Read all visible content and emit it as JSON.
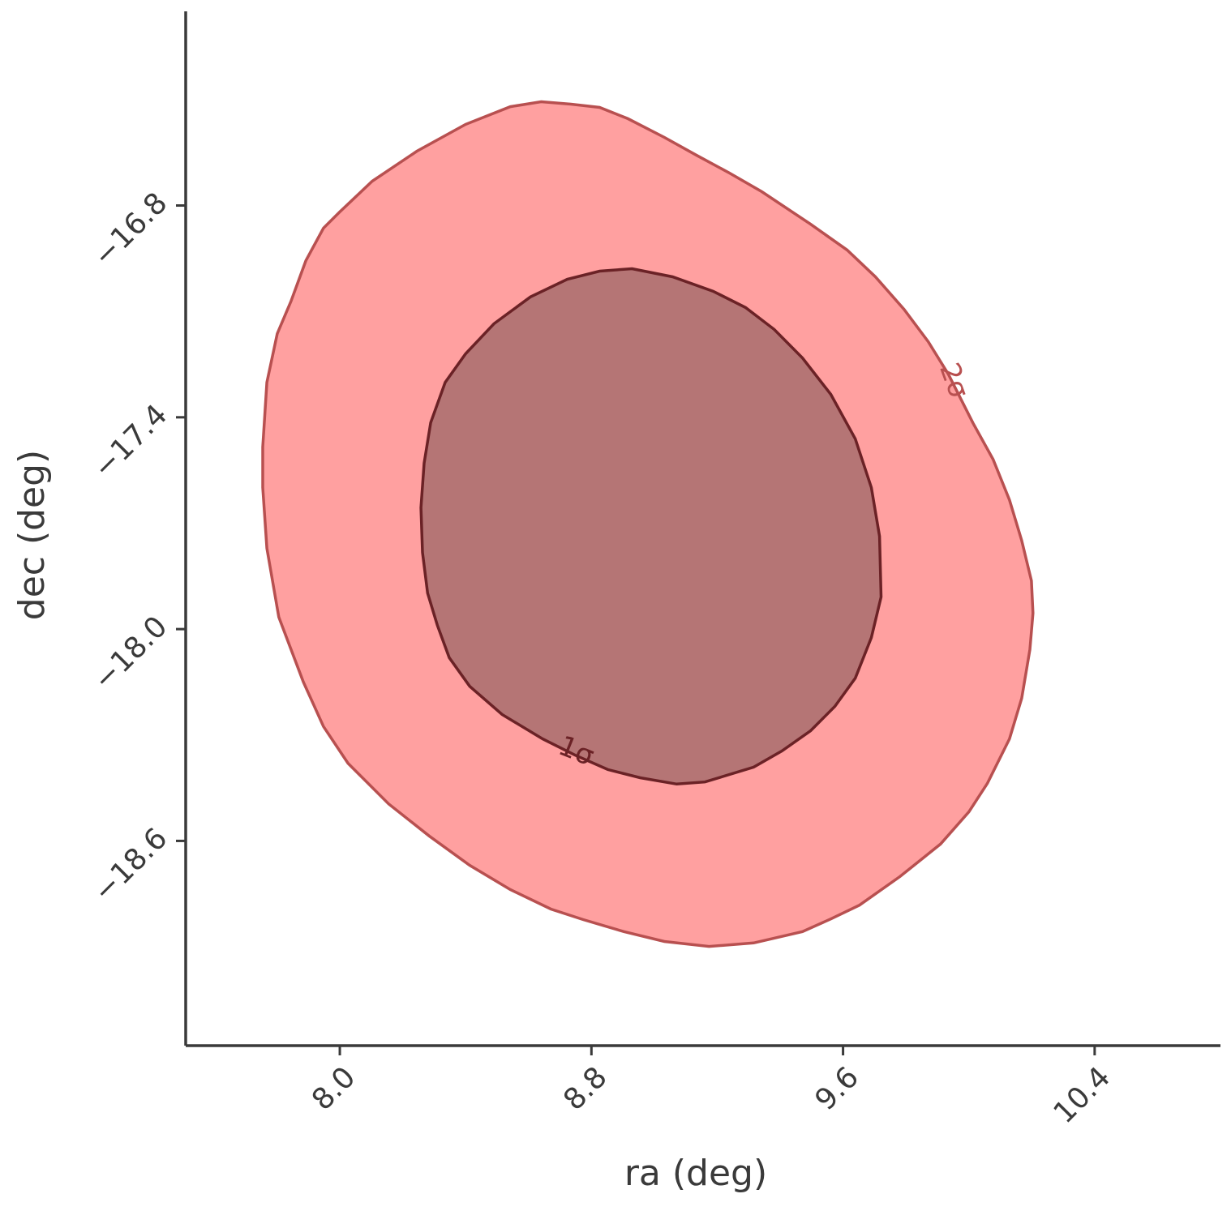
{
  "chart_data": {
    "type": "contour",
    "xlabel": "ra (deg)",
    "ylabel": "dec (deg)",
    "xlim": [
      7.51,
      10.8
    ],
    "ylim": [
      -19.18,
      -16.25
    ],
    "xticks": [
      {
        "value": 8.0,
        "label": "8.0"
      },
      8.8,
      9.6,
      10.4
    ],
    "yticks": [
      {
        "value": -16.8,
        "label": "−16.8"
      },
      {
        "value": -17.4,
        "label": "−17.4"
      },
      {
        "value": -18.0,
        "label": "−18.0"
      },
      {
        "value": -18.6,
        "label": "−18.6"
      }
    ],
    "series": [
      {
        "name": "2σ",
        "color": "#ffa0a0",
        "edge_color": "#b85050",
        "x": [
          8.64,
          8.735,
          8.826,
          8.916,
          9.032,
          9.135,
          9.239,
          9.342,
          9.497,
          9.613,
          9.703,
          9.794,
          9.871,
          9.935,
          10.013,
          10.077,
          10.129,
          10.168,
          10.199,
          10.204,
          10.194,
          10.168,
          10.129,
          10.059,
          10.0,
          9.91,
          9.781,
          9.652,
          9.561,
          9.471,
          9.316,
          9.174,
          9.032,
          8.903,
          8.774,
          8.671,
          8.542,
          8.413,
          8.284,
          8.155,
          8.026,
          7.948,
          7.884,
          7.806,
          7.768,
          7.755,
          7.755,
          7.768,
          7.801,
          7.845,
          7.892,
          7.948,
          8.0,
          8.103,
          8.245,
          8.4,
          8.542
        ],
        "y": [
          -16.506,
          -16.513,
          -16.522,
          -16.554,
          -16.607,
          -16.658,
          -16.708,
          -16.761,
          -16.853,
          -16.926,
          -17.002,
          -17.094,
          -17.186,
          -17.278,
          -17.416,
          -17.519,
          -17.634,
          -17.749,
          -17.863,
          -17.955,
          -18.058,
          -18.196,
          -18.311,
          -18.437,
          -18.518,
          -18.609,
          -18.701,
          -18.782,
          -18.821,
          -18.857,
          -18.889,
          -18.899,
          -18.885,
          -18.857,
          -18.823,
          -18.793,
          -18.738,
          -18.669,
          -18.586,
          -18.495,
          -18.38,
          -18.276,
          -18.15,
          -17.966,
          -17.771,
          -17.599,
          -17.484,
          -17.301,
          -17.163,
          -17.071,
          -16.956,
          -16.864,
          -16.818,
          -16.731,
          -16.646,
          -16.57,
          -16.52
        ]
      },
      {
        "name": "1σ",
        "color": "#b57575",
        "edge_color": "#6b2226",
        "x": [
          8.929,
          9.058,
          9.187,
          9.29,
          9.381,
          9.471,
          9.561,
          9.639,
          9.69,
          9.716,
          9.721,
          9.69,
          9.639,
          9.574,
          9.497,
          9.406,
          9.316,
          9.161,
          9.071,
          8.955,
          8.852,
          8.748,
          8.645,
          8.516,
          8.413,
          8.348,
          8.31,
          8.279,
          8.263,
          8.258,
          8.268,
          8.289,
          8.335,
          8.4,
          8.49,
          8.606,
          8.723,
          8.826
        ],
        "y": [
          -16.979,
          -17.002,
          -17.043,
          -17.089,
          -17.151,
          -17.232,
          -17.335,
          -17.461,
          -17.599,
          -17.737,
          -17.909,
          -18.024,
          -18.139,
          -18.219,
          -18.288,
          -18.345,
          -18.391,
          -18.433,
          -18.439,
          -18.421,
          -18.398,
          -18.357,
          -18.311,
          -18.242,
          -18.162,
          -18.081,
          -17.989,
          -17.898,
          -17.783,
          -17.656,
          -17.53,
          -17.415,
          -17.301,
          -17.22,
          -17.135,
          -17.059,
          -17.009,
          -16.986
        ]
      }
    ]
  }
}
